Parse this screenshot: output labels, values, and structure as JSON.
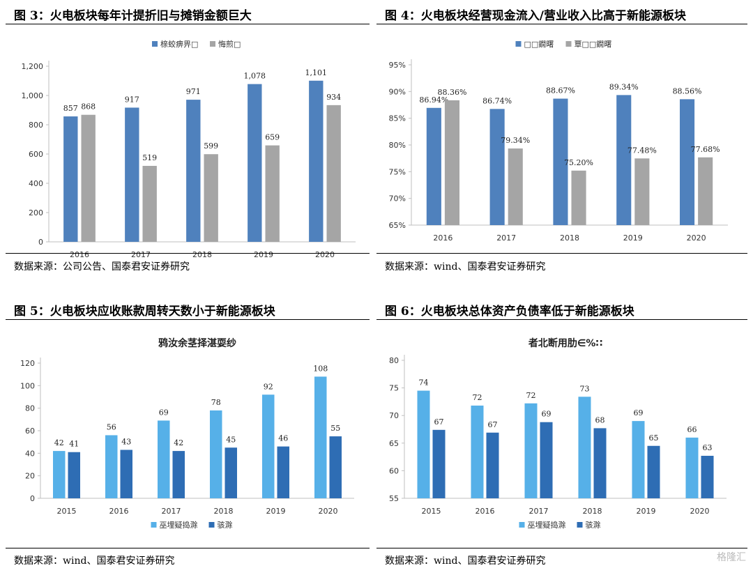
{
  "panels": [
    {
      "id": "p3",
      "fig_title": "图 3：火电板块每年计提折旧与摊销金额巨大",
      "source": "数据来源：公司公告、国泰君安证券研究",
      "chart_data": {
        "type": "bar",
        "title": "",
        "legend_position": "top",
        "categories": [
          "2016",
          "2017",
          "2018",
          "2019",
          "2020"
        ],
        "series": [
          {
            "name": "榇蛟痹畀□",
            "color": "#4f81bd",
            "values": [
              857,
              917,
              971,
              1078,
              1101
            ],
            "labels": [
              "857",
              "917",
              "971",
              "1,078",
              "1,101"
            ]
          },
          {
            "name": "悔煎□",
            "color": "#a5a5a5",
            "values": [
              868,
              519,
              599,
              659,
              934
            ],
            "labels": [
              "868",
              "519",
              "599",
              "659",
              "934"
            ]
          }
        ],
        "ylim": [
          0,
          1200
        ],
        "yticks": [
          0,
          200,
          400,
          600,
          800,
          1000,
          1200
        ],
        "yticklabels": [
          "0",
          "200",
          "400",
          "600",
          "800",
          "1,000",
          "1,200"
        ],
        "grid": false
      }
    },
    {
      "id": "p4",
      "fig_title": "图 4：火电板块经营现金流入/营业收入比高于新能源板块",
      "source": "数据来源：wind、国泰君安证券研究",
      "chart_data": {
        "type": "bar",
        "title": "",
        "legend_position": "top",
        "categories": [
          "2016",
          "2017",
          "2018",
          "2019",
          "2020"
        ],
        "series": [
          {
            "name": "□□鐗曙",
            "color": "#4f81bd",
            "values": [
              86.94,
              86.74,
              88.67,
              89.34,
              88.56
            ],
            "labels": [
              "86.94%",
              "86.74%",
              "88.67%",
              "89.34%",
              "88.56%"
            ]
          },
          {
            "name": "覃□□鐗曙",
            "color": "#a5a5a5",
            "values": [
              88.36,
              79.34,
              75.2,
              77.48,
              77.68
            ],
            "labels": [
              "88.36%",
              "79.34%",
              "75.20%",
              "77.48%",
              "77.68%"
            ]
          }
        ],
        "ylim": [
          65,
          95
        ],
        "yticks": [
          65,
          70,
          75,
          80,
          85,
          90,
          95
        ],
        "yticklabels": [
          "65%",
          "70%",
          "75%",
          "80%",
          "85%",
          "90%",
          "95%"
        ],
        "grid": false
      }
    },
    {
      "id": "p5",
      "fig_title": "图 5：火电板块应收账款周转天数小于新能源板块",
      "source": "数据来源：wind、国泰君安证券研究",
      "chart_data": {
        "type": "bar",
        "title": "鸦汝余茎择湛耍纱",
        "legend_position": "bottom",
        "categories": [
          "2015",
          "2016",
          "2017",
          "2018",
          "2019",
          "2020"
        ],
        "series": [
          {
            "name": "巫埋疑捣滁",
            "color": "#56b0e8",
            "values": [
              42,
              56,
              69,
              78,
              92,
              108
            ],
            "labels": [
              "42",
              "56",
              "69",
              "78",
              "92",
              "108"
            ]
          },
          {
            "name": "骇滁",
            "color": "#2e6db4",
            "values": [
              41,
              43,
              42,
              45,
              46,
              55
            ],
            "labels": [
              "41",
              "43",
              "42",
              "45",
              "46",
              "55"
            ]
          }
        ],
        "ylim": [
          0,
          120
        ],
        "yticks": [
          0,
          20,
          40,
          60,
          80,
          100,
          120
        ],
        "yticklabels": [
          "0",
          "20",
          "40",
          "60",
          "80",
          "100",
          "120"
        ],
        "grid": false
      }
    },
    {
      "id": "p6",
      "fig_title": "图 6：火电板块总体资产负债率低于新能源板块",
      "source": "数据来源：wind、国泰君安证券研究",
      "chart_data": {
        "type": "bar",
        "title": "者北断用肋∈%∷",
        "legend_position": "bottom",
        "categories": [
          "2015",
          "2016",
          "2017",
          "2018",
          "2019",
          "2020"
        ],
        "series": [
          {
            "name": "巫埋疑捣滁",
            "color": "#56b0e8",
            "values": [
              74.5,
              71.8,
              72.2,
              73.4,
              69.0,
              66.0
            ],
            "labels": [
              "74",
              "72",
              "72",
              "73",
              "69",
              "66"
            ]
          },
          {
            "name": "骇滁",
            "color": "#2e6db4",
            "values": [
              67.4,
              66.9,
              68.8,
              67.7,
              64.5,
              62.7
            ],
            "labels": [
              "67",
              "67",
              "69",
              "68",
              "65",
              "63"
            ]
          }
        ],
        "ylim": [
          55,
          80
        ],
        "yticks": [
          55,
          60,
          65,
          70,
          75,
          80
        ],
        "yticklabels": [
          "55",
          "60",
          "65",
          "70",
          "75",
          "80"
        ],
        "grid": false
      }
    }
  ],
  "watermark": "格隆汇"
}
